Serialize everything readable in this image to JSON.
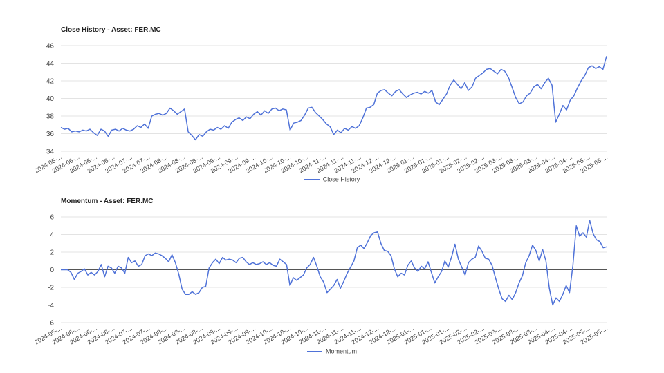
{
  "chart_data": [
    {
      "type": "line",
      "title": "Close History - Asset: FER.MC",
      "ylim": [
        34,
        46
      ],
      "yticks": [
        34,
        36,
        38,
        40,
        42,
        44,
        46
      ],
      "xtick_labels": [
        "2024-05-...",
        "2024-06-...",
        "2024-06-...",
        "2024-06-...",
        "2024-07-...",
        "2024-07-...",
        "2024-08-...",
        "2024-08-...",
        "2024-08-...",
        "2024-09-...",
        "2024-09-...",
        "2024-09-...",
        "2024-10-...",
        "2024-10-...",
        "2024-10-...",
        "2024-11-...",
        "2024-11-...",
        "2024-11-...",
        "2024-12-...",
        "2024-12-...",
        "2025-01-...",
        "2025-01-...",
        "2025-01-...",
        "2025-02-...",
        "2025-02-...",
        "2025-03-...",
        "2025-03-...",
        "2025-03-...",
        "2025-04-...",
        "2025-04-...",
        "2025-05-...",
        "2025-05-..."
      ],
      "grid": true,
      "legend": "bottom-center",
      "series": [
        {
          "name": "Close History",
          "color": "#4f72d8",
          "values": [
            36.7,
            36.5,
            36.6,
            36.2,
            36.3,
            36.2,
            36.4,
            36.3,
            36.5,
            36.1,
            35.8,
            36.5,
            36.3,
            35.7,
            36.4,
            36.5,
            36.3,
            36.6,
            36.4,
            36.3,
            36.5,
            36.9,
            36.7,
            37.1,
            36.6,
            38.0,
            38.2,
            38.3,
            38.1,
            38.3,
            38.9,
            38.6,
            38.2,
            38.5,
            38.8,
            36.2,
            35.8,
            35.3,
            35.9,
            35.7,
            36.2,
            36.5,
            36.4,
            36.7,
            36.5,
            36.9,
            36.6,
            37.3,
            37.6,
            37.8,
            37.5,
            37.9,
            37.7,
            38.2,
            38.5,
            38.1,
            38.6,
            38.3,
            38.8,
            38.9,
            38.6,
            38.8,
            38.7,
            36.4,
            37.2,
            37.3,
            37.5,
            38.1,
            38.9,
            39.0,
            38.4,
            38.0,
            37.6,
            37.1,
            36.8,
            35.9,
            36.4,
            36.1,
            36.6,
            36.4,
            36.8,
            36.6,
            36.9,
            37.8,
            38.9,
            39.0,
            39.3,
            40.6,
            40.9,
            41.0,
            40.6,
            40.3,
            40.8,
            41.0,
            40.5,
            40.1,
            40.4,
            40.6,
            40.7,
            40.5,
            40.8,
            40.6,
            40.9,
            39.6,
            39.3,
            39.9,
            40.5,
            41.5,
            42.1,
            41.6,
            41.1,
            41.8,
            40.9,
            41.3,
            42.3,
            42.6,
            42.9,
            43.3,
            43.4,
            43.1,
            42.8,
            43.3,
            43.1,
            42.4,
            41.3,
            40.1,
            39.4,
            39.6,
            40.3,
            40.6,
            41.3,
            41.6,
            41.1,
            41.8,
            42.3,
            41.5,
            37.3,
            38.2,
            39.2,
            38.7,
            39.8,
            40.3,
            41.2,
            42.0,
            42.6,
            43.5,
            43.7,
            43.4,
            43.6,
            43.3,
            44.8
          ]
        }
      ]
    },
    {
      "type": "line",
      "title": "Momentum - Asset: FER.MC",
      "ylim": [
        -6,
        6
      ],
      "yticks": [
        -6,
        -4,
        -2,
        0,
        2,
        4,
        6
      ],
      "xtick_labels": [
        "2024-05-...",
        "2024-06-...",
        "2024-06-...",
        "2024-06-...",
        "2024-07-...",
        "2024-07-...",
        "2024-08-...",
        "2024-08-...",
        "2024-08-...",
        "2024-09-...",
        "2024-09-...",
        "2024-09-...",
        "2024-10-...",
        "2024-10-...",
        "2024-10-...",
        "2024-11-...",
        "2024-11-...",
        "2024-11-...",
        "2024-12-...",
        "2024-12-...",
        "2025-01-...",
        "2025-01-...",
        "2025-01-...",
        "2025-02-...",
        "2025-02-...",
        "2025-03-...",
        "2025-03-...",
        "2025-03-...",
        "2025-04-...",
        "2025-04-...",
        "2025-05-...",
        "2025-05-..."
      ],
      "grid": true,
      "zero_line": true,
      "legend": "bottom-center",
      "series": [
        {
          "name": "Momentum",
          "color": "#4f72d8",
          "values": [
            0.0,
            0.0,
            0.0,
            -0.3,
            -1.1,
            -0.4,
            -0.2,
            0.1,
            -0.6,
            -0.3,
            -0.6,
            -0.2,
            0.6,
            -0.8,
            0.4,
            0.2,
            -0.4,
            0.4,
            0.2,
            -0.4,
            1.4,
            0.8,
            1.0,
            0.4,
            0.6,
            1.6,
            1.8,
            1.6,
            1.9,
            1.8,
            1.6,
            1.3,
            0.9,
            1.7,
            0.8,
            -0.5,
            -2.2,
            -2.8,
            -2.8,
            -2.5,
            -2.8,
            -2.6,
            -2.0,
            -1.9,
            0.2,
            0.8,
            1.2,
            0.7,
            1.4,
            1.1,
            1.2,
            1.1,
            0.8,
            1.3,
            1.4,
            0.9,
            0.6,
            0.8,
            0.6,
            0.7,
            0.9,
            0.6,
            0.8,
            0.5,
            0.4,
            1.2,
            0.9,
            0.6,
            -1.8,
            -0.9,
            -1.2,
            -0.9,
            -0.6,
            0.2,
            0.6,
            1.4,
            0.4,
            -0.8,
            -1.4,
            -2.6,
            -2.2,
            -1.8,
            -1.1,
            -2.1,
            -1.3,
            -0.4,
            0.3,
            1.0,
            2.5,
            2.8,
            2.4,
            3.1,
            3.9,
            4.2,
            4.3,
            3.0,
            2.2,
            2.1,
            1.6,
            0.1,
            -0.8,
            -0.4,
            -0.6,
            0.5,
            1.0,
            0.2,
            -0.2,
            0.4,
            0.1,
            0.9,
            -0.3,
            -1.5,
            -0.8,
            -0.2,
            1.0,
            0.3,
            1.5,
            2.9,
            1.2,
            0.3,
            -0.6,
            0.8,
            1.2,
            1.4,
            2.7,
            2.1,
            1.3,
            1.2,
            0.5,
            -0.9,
            -2.2,
            -3.3,
            -3.6,
            -2.9,
            -3.4,
            -2.6,
            -1.5,
            -0.7,
            0.8,
            1.6,
            2.8,
            2.2,
            1.0,
            2.3,
            1.0,
            -2.1,
            -4.0,
            -3.2,
            -3.6,
            -2.8,
            -1.8,
            -2.6,
            0.5,
            5.0,
            3.8,
            4.2,
            3.7,
            5.6,
            4.1,
            3.4,
            3.2,
            2.5,
            2.6
          ]
        }
      ]
    }
  ]
}
